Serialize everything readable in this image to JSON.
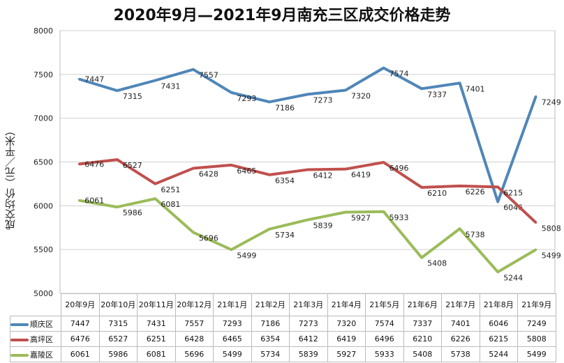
{
  "chart_data": {
    "type": "line",
    "title": "2020年9月—2021年9月南充三区成交价格走势",
    "ylabel": "成交均价（元／平米）",
    "xlabel": "",
    "categories": [
      "20年9月",
      "20年10月",
      "20年11月",
      "20年12月",
      "21年1月",
      "21年2月",
      "21年3月",
      "21年4月",
      "21年5月",
      "21年6月",
      "21年7月",
      "21年8月",
      "21年9月"
    ],
    "ylim": [
      5000,
      8000
    ],
    "yticks": [
      5000,
      5500,
      6000,
      6500,
      7000,
      7500,
      8000
    ],
    "grid": true,
    "legend": "data-table",
    "series": [
      {
        "name": "顺庆区",
        "color": "#4f86b8",
        "values": [
          7447,
          7315,
          7431,
          7557,
          7293,
          7186,
          7273,
          7320,
          7574,
          7337,
          7401,
          6046,
          7249
        ]
      },
      {
        "name": "高坪区",
        "color": "#c0504d",
        "values": [
          6476,
          6527,
          6251,
          6428,
          6465,
          6354,
          6412,
          6419,
          6496,
          6210,
          6226,
          6215,
          5808
        ]
      },
      {
        "name": "嘉陵区",
        "color": "#9bbb59",
        "values": [
          6061,
          5986,
          6081,
          5696,
          5499,
          5734,
          5839,
          5927,
          5933,
          5408,
          5738,
          5244,
          5499
        ]
      }
    ]
  }
}
